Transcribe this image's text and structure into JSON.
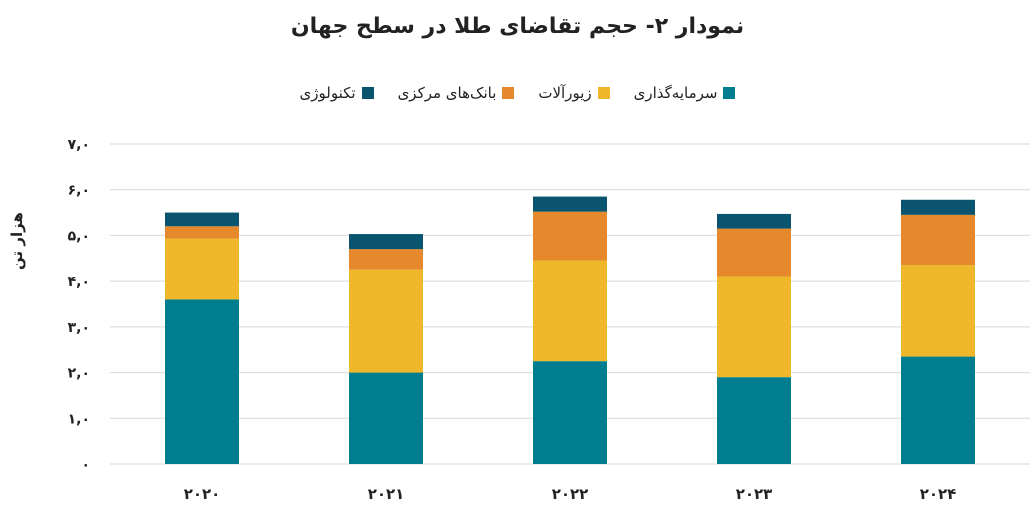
{
  "chart_data": {
    "type": "bar",
    "stacked": true,
    "title": "نمودار ۲- حجم تقاضای طلا در سطح جهان",
    "ylabel": "هزار تن",
    "ylim": [
      0,
      7
    ],
    "yticks": [
      "۰",
      "۱,۰",
      "۲,۰",
      "۳,۰",
      "۴,۰",
      "۵,۰",
      "۶,۰",
      "۷,۰"
    ],
    "categories": [
      "۲۰۲۰",
      "۲۰۲۱",
      "۲۰۲۲",
      "۲۰۲۳",
      "۲۰۲۴"
    ],
    "series": [
      {
        "name": "سرمایه‌گذاری",
        "color": "#007d8f",
        "values": [
          3.6,
          2.0,
          2.25,
          1.9,
          2.35
        ]
      },
      {
        "name": "زیورآلات",
        "color": "#eeb82a",
        "values": [
          1.33,
          2.25,
          2.2,
          2.2,
          2.0
        ]
      },
      {
        "name": "بانک‌های مرکزی",
        "color": "#e5892c",
        "values": [
          0.27,
          0.45,
          1.07,
          1.05,
          1.1
        ]
      },
      {
        "name": "تکنولوژی",
        "color": "#0a5470",
        "values": [
          0.3,
          0.33,
          0.33,
          0.32,
          0.33
        ]
      }
    ],
    "grid": true,
    "legend_position": "top"
  }
}
